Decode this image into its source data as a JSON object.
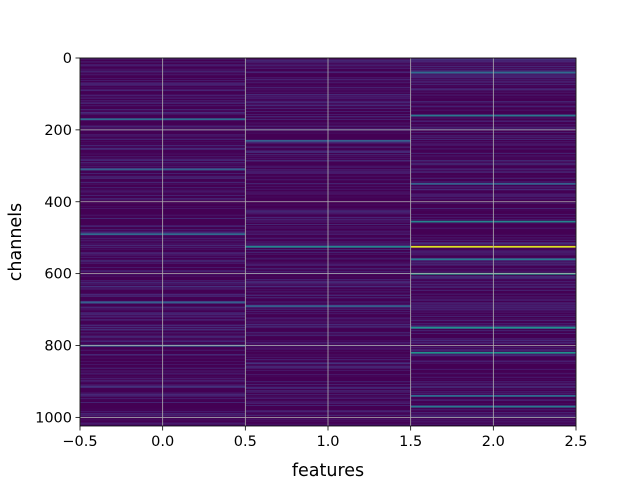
{
  "chart_data": {
    "type": "heatmap",
    "title": "",
    "xlabel": "features",
    "ylabel": "channels",
    "x_columns": [
      0,
      1,
      2
    ],
    "xlim": [
      -0.5,
      2.5
    ],
    "ylim": [
      1024,
      0
    ],
    "y_inverted": true,
    "x_ticks": [
      {
        "value": -0.5,
        "label": "−0.5"
      },
      {
        "value": 0.0,
        "label": "0.0"
      },
      {
        "value": 0.5,
        "label": "0.5"
      },
      {
        "value": 1.0,
        "label": "1.0"
      },
      {
        "value": 1.5,
        "label": "1.5"
      },
      {
        "value": 2.0,
        "label": "2.0"
      },
      {
        "value": 2.5,
        "label": "2.5"
      }
    ],
    "y_ticks": [
      {
        "value": 0,
        "label": "0"
      },
      {
        "value": 200,
        "label": "200"
      },
      {
        "value": 400,
        "label": "400"
      },
      {
        "value": 600,
        "label": "600"
      },
      {
        "value": 800,
        "label": "800"
      },
      {
        "value": 1000,
        "label": "1000"
      }
    ],
    "grid": true,
    "colormap": "viridis",
    "background_color": "#440154",
    "highlights": [
      {
        "channel": 525,
        "column": 2,
        "intensity": 0.95
      },
      {
        "channel": 525,
        "column": 1,
        "intensity": 0.45
      },
      {
        "channel": 490,
        "column": 0,
        "intensity": 0.35
      },
      {
        "channel": 455,
        "column": 2,
        "intensity": 0.45
      },
      {
        "channel": 600,
        "column": 2,
        "intensity": 0.55
      },
      {
        "channel": 750,
        "column": 2,
        "intensity": 0.5
      },
      {
        "channel": 820,
        "column": 2,
        "intensity": 0.5
      },
      {
        "channel": 160,
        "column": 2,
        "intensity": 0.4
      },
      {
        "channel": 170,
        "column": 0,
        "intensity": 0.35
      },
      {
        "channel": 680,
        "column": 0,
        "intensity": 0.3
      },
      {
        "channel": 800,
        "column": 0,
        "intensity": 0.35
      },
      {
        "channel": 40,
        "column": 2,
        "intensity": 0.35
      },
      {
        "channel": 310,
        "column": 0,
        "intensity": 0.3
      },
      {
        "channel": 970,
        "column": 2,
        "intensity": 0.4
      },
      {
        "channel": 940,
        "column": 2,
        "intensity": 0.35
      },
      {
        "channel": 560,
        "column": 2,
        "intensity": 0.4
      },
      {
        "channel": 350,
        "column": 2,
        "intensity": 0.3
      },
      {
        "channel": 230,
        "column": 1,
        "intensity": 0.3
      },
      {
        "channel": 690,
        "column": 1,
        "intensity": 0.3
      }
    ]
  }
}
